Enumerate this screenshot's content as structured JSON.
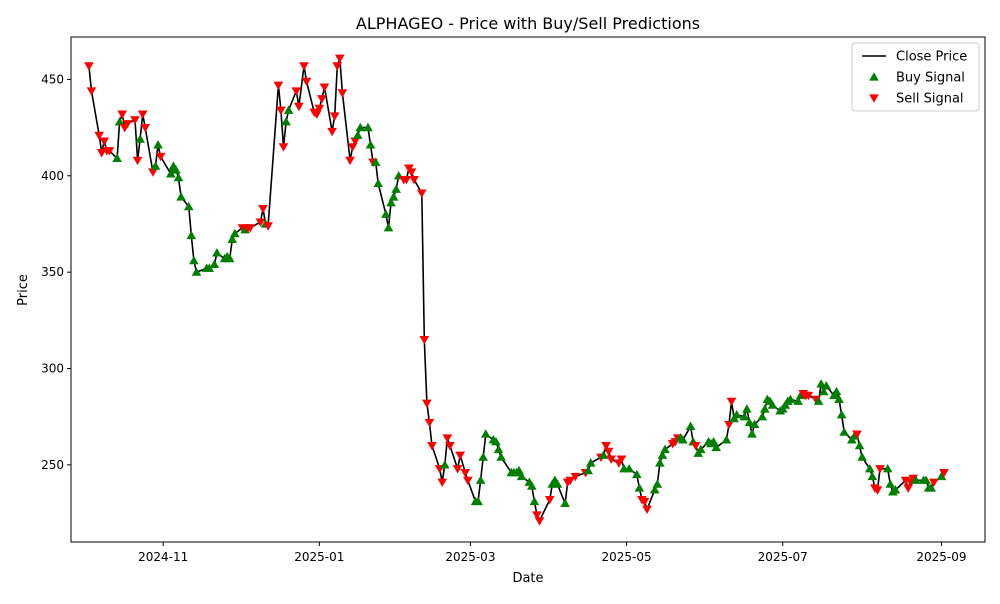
{
  "chart_data": {
    "type": "line",
    "title": "ALPHAGEO - Price with Buy/Sell Predictions",
    "xlabel": "Date",
    "ylabel": "Price",
    "x_ticks": [
      "2024-11",
      "2025-01",
      "2025-03",
      "2025-05",
      "2025-07",
      "2025-09"
    ],
    "y_ticks": [
      250,
      300,
      350,
      400,
      450
    ],
    "xlim": [
      "2024-09-26",
      "2025-09-18"
    ],
    "ylim": [
      210,
      472
    ],
    "grid": false,
    "legend_position": "top-right",
    "series": [
      {
        "name": "Close Price",
        "color": "#000000"
      },
      {
        "name": "Buy Signal",
        "color": "#008000",
        "marker": "triangle-up"
      },
      {
        "name": "Sell Signal",
        "color": "#ff0000",
        "marker": "triangle-down"
      }
    ],
    "points": [
      [
        "2024-10-03",
        457,
        "S"
      ],
      [
        "2024-10-04",
        444,
        "S"
      ],
      [
        "2024-10-07",
        421,
        "S"
      ],
      [
        "2024-10-08",
        412,
        "S"
      ],
      [
        "2024-10-09",
        418,
        "S"
      ],
      [
        "2024-10-10",
        413,
        "S"
      ],
      [
        "2024-10-11",
        413,
        "S"
      ],
      [
        "2024-10-14",
        409,
        "B"
      ],
      [
        "2024-10-15",
        428,
        "B"
      ],
      [
        "2024-10-16",
        432,
        "S"
      ],
      [
        "2024-10-17",
        425,
        "S"
      ],
      [
        "2024-10-18",
        427,
        "S"
      ],
      [
        "2024-10-21",
        429,
        "S"
      ],
      [
        "2024-10-22",
        408,
        "S"
      ],
      [
        "2024-10-23",
        419,
        "B"
      ],
      [
        "2024-10-24",
        432,
        "S"
      ],
      [
        "2024-10-25",
        425,
        "S"
      ],
      [
        "2024-10-28",
        402,
        "S"
      ],
      [
        "2024-10-29",
        405,
        "B"
      ],
      [
        "2024-10-30",
        416,
        "B"
      ],
      [
        "2024-10-31",
        410,
        "S"
      ],
      [
        "2024-11-04",
        401,
        "B"
      ],
      [
        "2024-11-05",
        405,
        "B"
      ],
      [
        "2024-11-06",
        403,
        "B"
      ],
      [
        "2024-11-07",
        399,
        "B"
      ],
      [
        "2024-11-08",
        389,
        "B"
      ],
      [
        "2024-11-11",
        384,
        "B"
      ],
      [
        "2024-11-12",
        369,
        "B"
      ],
      [
        "2024-11-13",
        356,
        "B"
      ],
      [
        "2024-11-14",
        350,
        "B"
      ],
      [
        "2024-11-18",
        352,
        "B"
      ],
      [
        "2024-11-19",
        352,
        "B"
      ],
      [
        "2024-11-21",
        354,
        "B"
      ],
      [
        "2024-11-22",
        360,
        "B"
      ],
      [
        "2024-11-25",
        357,
        "B"
      ],
      [
        "2024-11-26",
        358,
        "B"
      ],
      [
        "2024-11-27",
        357,
        "B"
      ],
      [
        "2024-11-28",
        367,
        "B"
      ],
      [
        "2024-11-29",
        370,
        "B"
      ],
      [
        "2024-12-02",
        373,
        "S"
      ],
      [
        "2024-12-03",
        372,
        "B"
      ],
      [
        "2024-12-04",
        373,
        "S"
      ],
      [
        "2024-12-05",
        373,
        "S"
      ],
      [
        "2024-12-09",
        376,
        "S"
      ],
      [
        "2024-12-10",
        383,
        "S"
      ],
      [
        "2024-12-11",
        375,
        "B"
      ],
      [
        "2024-12-12",
        374,
        "S"
      ],
      [
        "2024-12-16",
        447,
        "S"
      ],
      [
        "2024-12-17",
        434,
        "S"
      ],
      [
        "2024-12-18",
        415,
        "S"
      ],
      [
        "2024-12-19",
        428,
        "B"
      ],
      [
        "2024-12-20",
        434,
        "B"
      ],
      [
        "2024-12-23",
        444,
        "S"
      ],
      [
        "2024-12-24",
        436,
        "S"
      ],
      [
        "2024-12-26",
        457,
        "S"
      ],
      [
        "2024-12-27",
        449,
        "S"
      ],
      [
        "2024-12-30",
        433,
        "S"
      ],
      [
        "2024-12-31",
        432,
        "S"
      ],
      [
        "2025-01-01",
        435,
        "S"
      ],
      [
        "2025-01-02",
        440,
        "S"
      ],
      [
        "2025-01-03",
        446,
        "S"
      ],
      [
        "2025-01-06",
        423,
        "S"
      ],
      [
        "2025-01-07",
        431,
        "S"
      ],
      [
        "2025-01-08",
        457,
        "S"
      ],
      [
        "2025-01-09",
        461,
        "S"
      ],
      [
        "2025-01-10",
        443,
        "S"
      ],
      [
        "2025-01-13",
        408,
        "S"
      ],
      [
        "2025-01-14",
        415,
        "S"
      ],
      [
        "2025-01-15",
        418,
        "S"
      ],
      [
        "2025-01-16",
        421,
        "B"
      ],
      [
        "2025-01-17",
        425,
        "B"
      ],
      [
        "2025-01-20",
        425,
        "B"
      ],
      [
        "2025-01-21",
        416,
        "B"
      ],
      [
        "2025-01-22",
        407,
        "S"
      ],
      [
        "2025-01-23",
        407,
        "B"
      ],
      [
        "2025-01-24",
        396,
        "B"
      ],
      [
        "2025-01-27",
        380,
        "B"
      ],
      [
        "2025-01-28",
        373,
        "B"
      ],
      [
        "2025-01-29",
        386,
        "B"
      ],
      [
        "2025-01-30",
        389,
        "B"
      ],
      [
        "2025-01-31",
        393,
        "B"
      ],
      [
        "2025-02-01",
        400,
        "B"
      ],
      [
        "2025-02-03",
        398,
        "S"
      ],
      [
        "2025-02-04",
        398,
        "S"
      ],
      [
        "2025-02-05",
        404,
        "S"
      ],
      [
        "2025-02-06",
        402,
        "S"
      ],
      [
        "2025-02-07",
        398,
        "S"
      ],
      [
        "2025-02-10",
        391,
        "S"
      ],
      [
        "2025-02-11",
        315,
        "S"
      ],
      [
        "2025-02-12",
        282,
        "S"
      ],
      [
        "2025-02-13",
        272,
        "S"
      ],
      [
        "2025-02-14",
        260,
        "S"
      ],
      [
        "2025-02-17",
        248,
        "S"
      ],
      [
        "2025-02-18",
        241,
        "S"
      ],
      [
        "2025-02-19",
        250,
        "B"
      ],
      [
        "2025-02-20",
        264,
        "S"
      ],
      [
        "2025-02-21",
        260,
        "S"
      ],
      [
        "2025-02-24",
        248,
        "S"
      ],
      [
        "2025-02-25",
        255,
        "S"
      ],
      [
        "2025-02-27",
        246,
        "S"
      ],
      [
        "2025-02-28",
        242,
        "S"
      ],
      [
        "2025-03-03",
        231,
        "B"
      ],
      [
        "2025-03-04",
        231,
        "B"
      ],
      [
        "2025-03-05",
        242,
        "B"
      ],
      [
        "2025-03-06",
        254,
        "B"
      ],
      [
        "2025-03-07",
        266,
        "B"
      ],
      [
        "2025-03-10",
        263,
        "B"
      ],
      [
        "2025-03-11",
        262,
        "B"
      ],
      [
        "2025-03-12",
        258,
        "B"
      ],
      [
        "2025-03-13",
        254,
        "B"
      ],
      [
        "2025-03-17",
        246,
        "B"
      ],
      [
        "2025-03-18",
        246,
        "B"
      ],
      [
        "2025-03-19",
        246,
        "B"
      ],
      [
        "2025-03-20",
        247,
        "B"
      ],
      [
        "2025-03-21",
        244,
        "B"
      ],
      [
        "2025-03-24",
        241,
        "B"
      ],
      [
        "2025-03-25",
        239,
        "B"
      ],
      [
        "2025-03-26",
        231,
        "B"
      ],
      [
        "2025-03-27",
        224,
        "S"
      ],
      [
        "2025-03-28",
        221,
        "S"
      ],
      [
        "2025-04-01",
        232,
        "S"
      ],
      [
        "2025-04-02",
        240,
        "B"
      ],
      [
        "2025-04-03",
        242,
        "B"
      ],
      [
        "2025-04-04",
        240,
        "B"
      ],
      [
        "2025-04-07",
        230,
        "B"
      ],
      [
        "2025-04-08",
        241,
        "S"
      ],
      [
        "2025-04-09",
        242,
        "S"
      ],
      [
        "2025-04-11",
        244,
        "S"
      ],
      [
        "2025-04-15",
        246,
        "S"
      ],
      [
        "2025-04-16",
        247,
        "B"
      ],
      [
        "2025-04-17",
        251,
        "B"
      ],
      [
        "2025-04-21",
        254,
        "S"
      ],
      [
        "2025-04-22",
        255,
        "B"
      ],
      [
        "2025-04-23",
        260,
        "S"
      ],
      [
        "2025-04-24",
        257,
        "S"
      ],
      [
        "2025-04-25",
        253,
        "S"
      ],
      [
        "2025-04-28",
        251,
        "S"
      ],
      [
        "2025-04-29",
        253,
        "S"
      ],
      [
        "2025-04-30",
        248,
        "B"
      ],
      [
        "2025-05-02",
        248,
        "B"
      ],
      [
        "2025-05-05",
        245,
        "B"
      ],
      [
        "2025-05-06",
        238,
        "B"
      ],
      [
        "2025-05-07",
        232,
        "S"
      ],
      [
        "2025-05-08",
        231,
        "S"
      ],
      [
        "2025-05-09",
        227,
        "S"
      ],
      [
        "2025-05-12",
        237,
        "B"
      ],
      [
        "2025-05-13",
        240,
        "B"
      ],
      [
        "2025-05-14",
        251,
        "B"
      ],
      [
        "2025-05-15",
        255,
        "B"
      ],
      [
        "2025-05-16",
        258,
        "B"
      ],
      [
        "2025-05-19",
        261,
        "S"
      ],
      [
        "2025-05-20",
        262,
        "S"
      ],
      [
        "2025-05-21",
        264,
        "S"
      ],
      [
        "2025-05-22",
        264,
        "B"
      ],
      [
        "2025-05-23",
        263,
        "B"
      ],
      [
        "2025-05-26",
        270,
        "B"
      ],
      [
        "2025-05-27",
        262,
        "B"
      ],
      [
        "2025-05-28",
        260,
        "S"
      ],
      [
        "2025-05-29",
        256,
        "B"
      ],
      [
        "2025-05-30",
        258,
        "B"
      ],
      [
        "2025-06-02",
        262,
        "B"
      ],
      [
        "2025-06-03",
        261,
        "B"
      ],
      [
        "2025-06-04",
        262,
        "B"
      ],
      [
        "2025-06-05",
        259,
        "B"
      ],
      [
        "2025-06-09",
        263,
        "B"
      ],
      [
        "2025-06-10",
        271,
        "S"
      ],
      [
        "2025-06-11",
        283,
        "S"
      ],
      [
        "2025-06-12",
        274,
        "B"
      ],
      [
        "2025-06-13",
        276,
        "B"
      ],
      [
        "2025-06-16",
        275,
        "B"
      ],
      [
        "2025-06-17",
        279,
        "B"
      ],
      [
        "2025-06-18",
        272,
        "B"
      ],
      [
        "2025-06-19",
        266,
        "B"
      ],
      [
        "2025-06-20",
        271,
        "B"
      ],
      [
        "2025-06-23",
        275,
        "B"
      ],
      [
        "2025-06-24",
        279,
        "B"
      ],
      [
        "2025-06-25",
        284,
        "B"
      ],
      [
        "2025-06-26",
        283,
        "B"
      ],
      [
        "2025-06-27",
        281,
        "B"
      ],
      [
        "2025-06-30",
        278,
        "B"
      ],
      [
        "2025-07-01",
        279,
        "B"
      ],
      [
        "2025-07-02",
        281,
        "B"
      ],
      [
        "2025-07-03",
        283,
        "B"
      ],
      [
        "2025-07-04",
        284,
        "B"
      ],
      [
        "2025-07-07",
        283,
        "B"
      ],
      [
        "2025-07-08",
        286,
        "B"
      ],
      [
        "2025-07-09",
        287,
        "S"
      ],
      [
        "2025-07-10",
        286,
        "S"
      ],
      [
        "2025-07-11",
        286,
        "S"
      ],
      [
        "2025-07-14",
        284,
        "S"
      ],
      [
        "2025-07-15",
        283,
        "B"
      ],
      [
        "2025-07-16",
        292,
        "B"
      ],
      [
        "2025-07-17",
        288,
        "B"
      ],
      [
        "2025-07-18",
        291,
        "B"
      ],
      [
        "2025-07-21",
        286,
        "B"
      ],
      [
        "2025-07-22",
        288,
        "B"
      ],
      [
        "2025-07-23",
        284,
        "B"
      ],
      [
        "2025-07-24",
        276,
        "B"
      ],
      [
        "2025-07-25",
        267,
        "B"
      ],
      [
        "2025-07-28",
        263,
        "B"
      ],
      [
        "2025-07-29",
        265,
        "B"
      ],
      [
        "2025-07-30",
        266,
        "S"
      ],
      [
        "2025-07-31",
        260,
        "B"
      ],
      [
        "2025-08-01",
        254,
        "B"
      ],
      [
        "2025-08-04",
        248,
        "B"
      ],
      [
        "2025-08-05",
        244,
        "B"
      ],
      [
        "2025-08-06",
        238,
        "S"
      ],
      [
        "2025-08-07",
        237,
        "S"
      ],
      [
        "2025-08-08",
        248,
        "S"
      ],
      [
        "2025-08-11",
        248,
        "B"
      ],
      [
        "2025-08-12",
        240,
        "B"
      ],
      [
        "2025-08-13",
        236,
        "B"
      ],
      [
        "2025-08-14",
        237,
        "B"
      ],
      [
        "2025-08-18",
        242,
        "S"
      ],
      [
        "2025-08-19",
        238,
        "S"
      ],
      [
        "2025-08-20",
        241,
        "S"
      ],
      [
        "2025-08-21",
        243,
        "S"
      ],
      [
        "2025-08-22",
        242,
        "B"
      ],
      [
        "2025-08-25",
        242,
        "B"
      ],
      [
        "2025-08-26",
        242,
        "B"
      ],
      [
        "2025-08-27",
        238,
        "B"
      ],
      [
        "2025-08-28",
        238,
        "B"
      ],
      [
        "2025-08-29",
        241,
        "S"
      ],
      [
        "2025-09-01",
        244,
        "B"
      ],
      [
        "2025-09-02",
        246,
        "S"
      ]
    ]
  }
}
